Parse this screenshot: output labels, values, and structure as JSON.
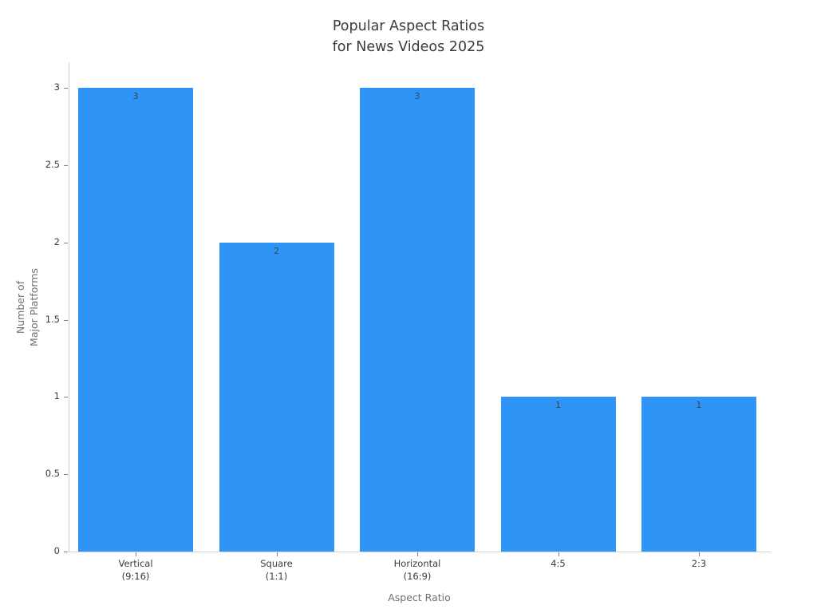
{
  "window": {
    "background": "#ffffff"
  },
  "chart_data": {
    "type": "bar",
    "title": "Popular Aspect Ratios\nfor News Videos 2025",
    "xlabel": "Aspect Ratio",
    "ylabel": "Number of\nMajor Platforms",
    "categories": [
      "Vertical\n(9:16)",
      "Square\n(1:1)",
      "Horizontal\n(16:9)",
      "4:5",
      "2:3"
    ],
    "values": [
      3,
      2,
      3,
      1,
      1
    ],
    "bar_value_labels": [
      "3",
      "2",
      "3",
      "1",
      "1"
    ],
    "ytick_values": [
      0,
      0.5,
      1,
      1.5,
      2,
      2.5,
      3
    ],
    "ytick_labels": [
      "0",
      "0.5",
      "1",
      "1.5",
      "2",
      "2.5",
      "3"
    ],
    "ylim": [
      0,
      3.17
    ],
    "grid": false,
    "legend": null,
    "colors": {
      "bar": "#2E94F6",
      "title_text": "#3b3b3b",
      "tick_text": "#3b3b3b",
      "axis_title_text": "#707070",
      "bar_value_text": "#37474F",
      "axis_line": "#d0d0d0",
      "tick_mark": "#808080",
      "background": "#ffffff"
    }
  }
}
